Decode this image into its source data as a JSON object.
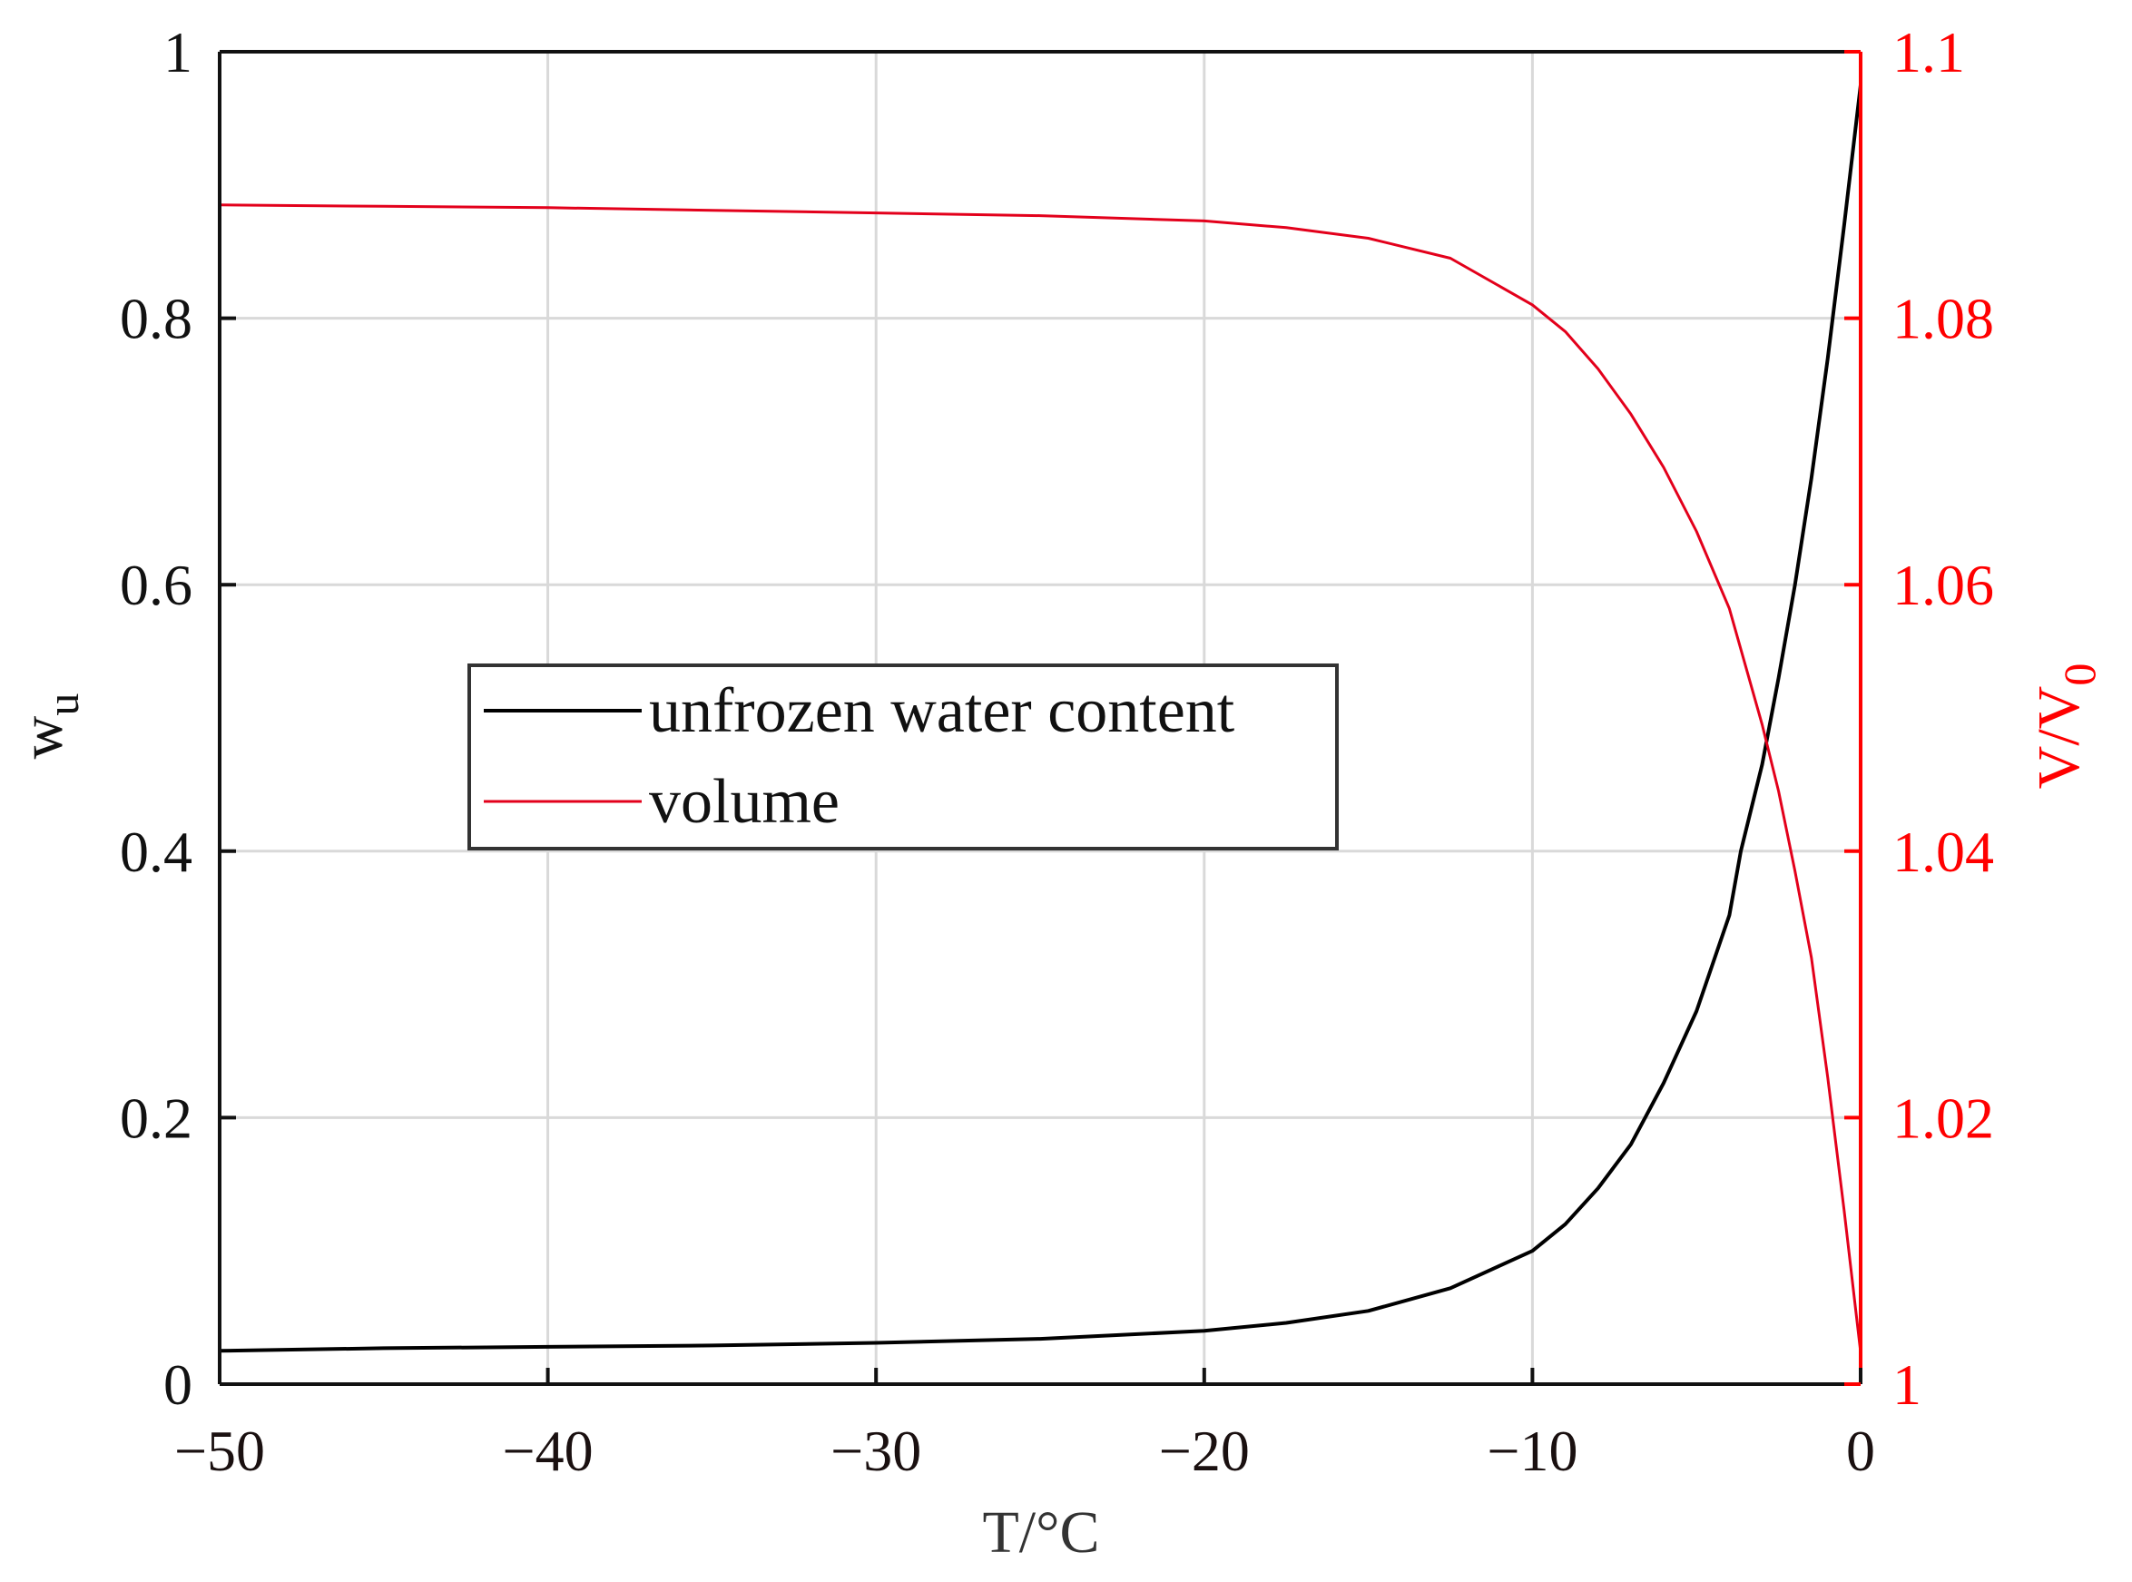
{
  "chart_data": {
    "type": "line",
    "title": "",
    "xlabel": "T/°C",
    "ylabel": "w",
    "ylabel_subscript": "u",
    "y2label": "V/V",
    "y2label_subscript": "0",
    "xlim": [
      -50,
      0
    ],
    "ylim": [
      0,
      1
    ],
    "y2lim": [
      1,
      1.1
    ],
    "grid": true,
    "legend_position": "center-left",
    "x_ticks": [
      "−50",
      "−40",
      "−30",
      "−20",
      "−10",
      "0"
    ],
    "x_tick_values": [
      -50,
      -40,
      -30,
      -20,
      -10,
      0
    ],
    "y_ticks": [
      "0",
      "0.2",
      "0.4",
      "0.6",
      "0.8",
      "1"
    ],
    "y_tick_values": [
      0,
      0.2,
      0.4,
      0.6,
      0.8,
      1
    ],
    "y2_ticks": [
      "1",
      "1.02",
      "1.04",
      "1.06",
      "1.08",
      "1.1"
    ],
    "y2_tick_values": [
      1,
      1.02,
      1.04,
      1.06,
      1.08,
      1.1
    ],
    "series": [
      {
        "name": "unfrozen water content",
        "axis": "left",
        "color": "#000000",
        "x": [
          -50,
          -45,
          -40,
          -35,
          -30,
          -25,
          -20,
          -17.5,
          -15,
          -12.5,
          -10,
          -9,
          -8,
          -7,
          -6,
          -5,
          -4,
          -3.65,
          -3,
          -2.5,
          -2,
          -1.5,
          -1,
          -0.5,
          0
        ],
        "y": [
          0.025,
          0.027,
          0.028,
          0.029,
          0.031,
          0.034,
          0.04,
          0.046,
          0.055,
          0.072,
          0.1,
          0.12,
          0.147,
          0.18,
          0.226,
          0.28,
          0.352,
          0.4,
          0.465,
          0.53,
          0.6,
          0.68,
          0.77,
          0.87,
          0.975
        ]
      },
      {
        "name": "volume",
        "axis": "right",
        "color": "#ff0000",
        "x": [
          -50,
          -45,
          -40,
          -35,
          -30,
          -25,
          -20,
          -17.5,
          -15,
          -12.5,
          -10,
          -9,
          -8,
          -7,
          -6,
          -5,
          -4,
          -3,
          -2.5,
          -2,
          -1.5,
          -1,
          -0.5,
          0
        ],
        "y": [
          1.0885,
          1.0884,
          1.0883,
          1.0881,
          1.0879,
          1.0877,
          1.0873,
          1.0868,
          1.086,
          1.0845,
          1.081,
          1.079,
          1.0762,
          1.0728,
          1.0688,
          1.064,
          1.0582,
          1.0495,
          1.0445,
          1.0385,
          1.032,
          1.023,
          1.013,
          1.0024
        ]
      }
    ],
    "crossing_point": {
      "x": -2.85,
      "y_left": 0.475,
      "y_right": 1.0475
    }
  },
  "legend": {
    "items": [
      {
        "label": "unfrozen water content",
        "color": "#000000"
      },
      {
        "label": "volume",
        "color": "#ff0000"
      }
    ]
  },
  "colors": {
    "left_axis": "#000000",
    "right_axis": "#ff0000",
    "grid": "#d9d9d9"
  }
}
